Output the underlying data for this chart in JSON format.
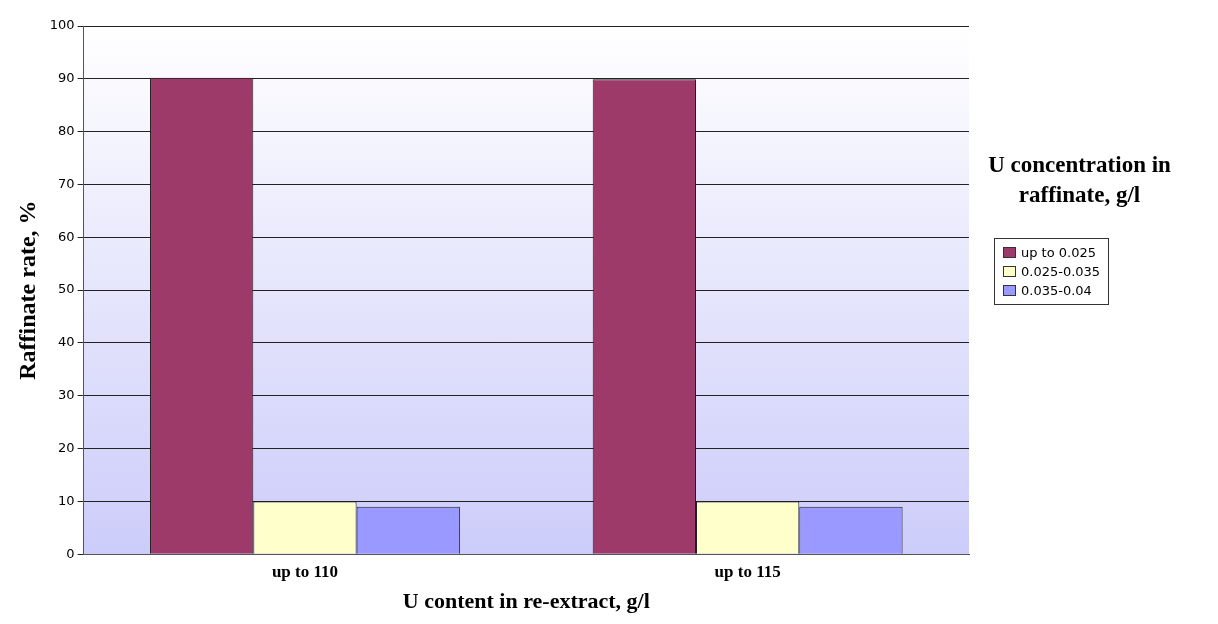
{
  "chart_data": {
    "type": "bar",
    "xlabel": "U content in re-extract, g/l",
    "ylabel": "Raffinate rate, %",
    "legend_title": "U concentration in raffinate, g/l",
    "categories": [
      "up to 110",
      "up to 115"
    ],
    "series": [
      {
        "name": "up to 0.025",
        "color": "#9e3a6a",
        "values": [
          90.2,
          89.9
        ]
      },
      {
        "name": "0.025-0.035",
        "color": "#ffffcc",
        "values": [
          10,
          10
        ]
      },
      {
        "name": "0.035-0.04",
        "color": "#9999ff",
        "values": [
          9,
          9
        ]
      }
    ],
    "ylim": [
      0,
      100
    ],
    "yticks": [
      0,
      10,
      20,
      30,
      40,
      50,
      60,
      70,
      80,
      90,
      100
    ],
    "grid": "y",
    "legend": "right"
  }
}
